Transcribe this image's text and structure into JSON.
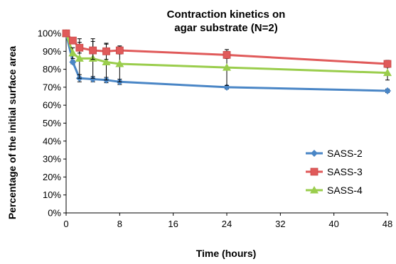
{
  "chart_data": {
    "type": "line",
    "title_lines": [
      "Contraction kinetics on",
      "agar substrate (N=2)"
    ],
    "xlabel": "Time (hours)",
    "ylabel": "Percentage of the initial surface area",
    "xlim": [
      0,
      48
    ],
    "ylim": [
      0,
      100
    ],
    "x_ticks": [
      0,
      8,
      16,
      24,
      32,
      40,
      48
    ],
    "x_tick_labels": [
      "0",
      "8",
      "16",
      "24",
      "32",
      "40",
      "48"
    ],
    "y_ticks": [
      0,
      10,
      20,
      30,
      40,
      50,
      60,
      70,
      80,
      90,
      100
    ],
    "y_tick_labels": [
      "0%",
      "10%",
      "20%",
      "30%",
      "40%",
      "50%",
      "60%",
      "70%",
      "80%",
      "90%",
      "100%"
    ],
    "grid": false,
    "legend_position": "bottom-right",
    "x": [
      0,
      1,
      2,
      4,
      6,
      8,
      24,
      48
    ],
    "series": [
      {
        "name": "SASS-2",
        "marker": "diamond",
        "color": "#4a86c6",
        "values": [
          100,
          84,
          75,
          74.5,
          74,
          73,
          70,
          68
        ],
        "error": [
          0,
          1,
          2,
          1.5,
          1.5,
          1.5,
          1,
          1
        ]
      },
      {
        "name": "SASS-3",
        "marker": "square",
        "color": "#e05a5a",
        "values": [
          100,
          96,
          92,
          90.5,
          90,
          90.5,
          88,
          83
        ],
        "error": [
          0,
          1.5,
          3,
          5,
          4.5,
          2,
          2,
          2
        ]
      },
      {
        "name": "SASS-4",
        "marker": "triangle",
        "color": "#9acd4c",
        "values": [
          100,
          89,
          86,
          86,
          84,
          83,
          81,
          78
        ],
        "error": [
          0,
          3,
          11,
          11,
          10,
          10,
          10,
          4
        ]
      }
    ]
  }
}
